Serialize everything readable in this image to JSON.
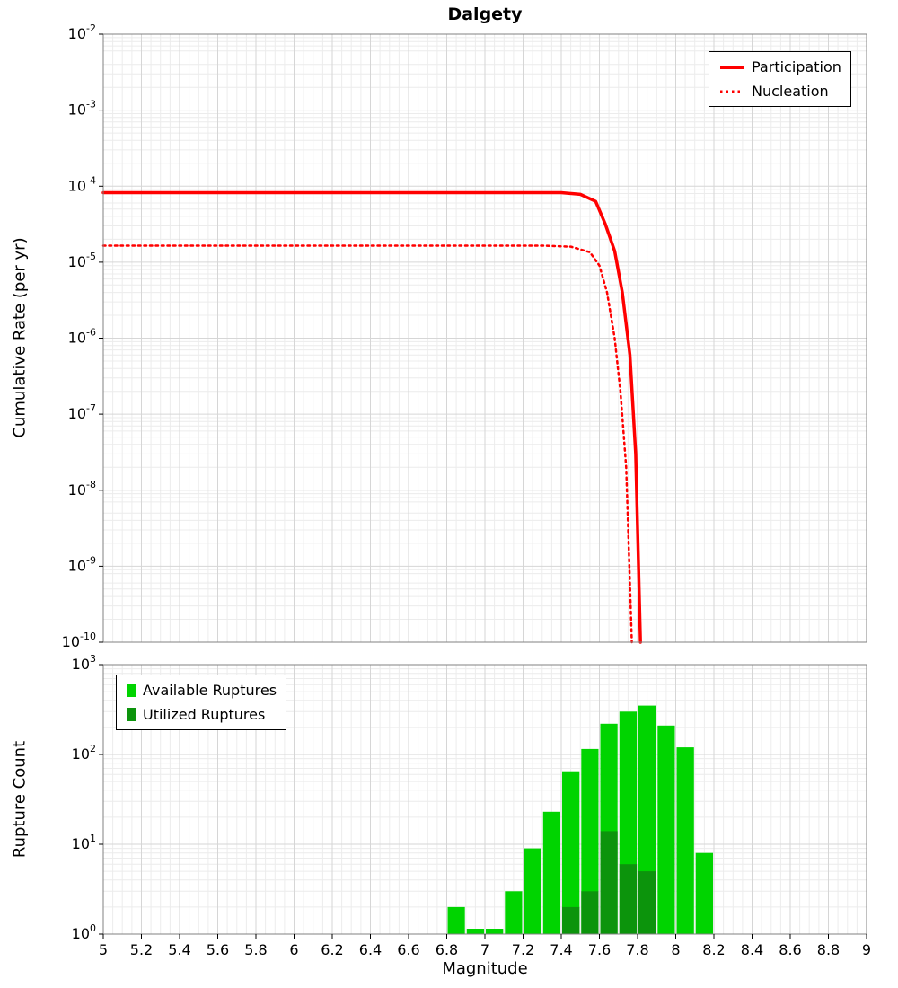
{
  "chart_data": [
    {
      "type": "line",
      "panel": "top",
      "title": "Dalgety",
      "ylabel": "Cumulative Rate (per yr)",
      "xlim": [
        5,
        9
      ],
      "ylim_log10": [
        -10,
        -2
      ],
      "y_tick_exponents": [
        -2,
        -3,
        -4,
        -5,
        -6,
        -7,
        -8,
        -9,
        -10
      ],
      "grid": true,
      "legend_position": "top-right",
      "series": [
        {
          "name": "Participation",
          "style": "solid",
          "color": "#ff0000",
          "points": [
            [
              5.0,
              8.2e-05
            ],
            [
              6.0,
              8.2e-05
            ],
            [
              7.0,
              8.2e-05
            ],
            [
              7.4,
              8.2e-05
            ],
            [
              7.5,
              7.8e-05
            ],
            [
              7.58,
              6.3e-05
            ],
            [
              7.63,
              3.2e-05
            ],
            [
              7.68,
              1.4e-05
            ],
            [
              7.72,
              4e-06
            ],
            [
              7.76,
              6e-07
            ],
            [
              7.79,
              3e-08
            ],
            [
              7.815,
              1e-10
            ]
          ]
        },
        {
          "name": "Nucleation",
          "style": "dotted",
          "color": "#ff0000",
          "points": [
            [
              5.0,
              1.65e-05
            ],
            [
              6.0,
              1.65e-05
            ],
            [
              7.0,
              1.65e-05
            ],
            [
              7.3,
              1.65e-05
            ],
            [
              7.45,
              1.6e-05
            ],
            [
              7.55,
              1.35e-05
            ],
            [
              7.6,
              9e-06
            ],
            [
              7.64,
              4e-06
            ],
            [
              7.68,
              1e-06
            ],
            [
              7.71,
              2e-07
            ],
            [
              7.74,
              2e-08
            ],
            [
              7.77,
              1e-10
            ]
          ]
        }
      ]
    },
    {
      "type": "bar",
      "panel": "bottom",
      "xlabel": "Magnitude",
      "ylabel": "Rupture Count",
      "xlim": [
        5,
        9
      ],
      "ylim_log10": [
        0,
        3
      ],
      "y_tick_exponents": [
        0,
        1,
        2,
        3
      ],
      "bin_width": 0.1,
      "grid": true,
      "legend_position": "top-left",
      "x_ticks": [
        [
          5,
          "5"
        ],
        [
          5.2,
          "5.2"
        ],
        [
          5.4,
          "5.4"
        ],
        [
          5.6,
          "5.6"
        ],
        [
          5.8,
          "5.8"
        ],
        [
          6,
          "6"
        ],
        [
          6.2,
          "6.2"
        ],
        [
          6.4,
          "6.4"
        ],
        [
          6.6,
          "6.6"
        ],
        [
          6.8,
          "6.8"
        ],
        [
          7,
          "7"
        ],
        [
          7.2,
          "7.2"
        ],
        [
          7.4,
          "7.4"
        ],
        [
          7.6,
          "7.6"
        ],
        [
          7.8,
          "7.8"
        ],
        [
          8,
          "8"
        ],
        [
          8.2,
          "8.2"
        ],
        [
          8.4,
          "8.4"
        ],
        [
          8.6,
          "8.6"
        ],
        [
          8.8,
          "8.8"
        ],
        [
          9,
          "9"
        ]
      ],
      "series": [
        {
          "name": "Available Ruptures",
          "color": "#00d400",
          "bins": [
            [
              6.85,
              2
            ],
            [
              6.95,
              1
            ],
            [
              7.05,
              1
            ],
            [
              7.15,
              3
            ],
            [
              7.25,
              9
            ],
            [
              7.35,
              23
            ],
            [
              7.45,
              65
            ],
            [
              7.55,
              115
            ],
            [
              7.65,
              220
            ],
            [
              7.75,
              300
            ],
            [
              7.85,
              350
            ],
            [
              7.95,
              210
            ],
            [
              8.05,
              120
            ],
            [
              8.15,
              8
            ]
          ]
        },
        {
          "name": "Utilized Ruptures",
          "color": "#0c940c",
          "bins": [
            [
              7.45,
              2
            ],
            [
              7.55,
              3
            ],
            [
              7.65,
              14
            ],
            [
              7.75,
              6
            ],
            [
              7.85,
              5
            ]
          ]
        }
      ]
    }
  ],
  "style": {
    "grid_major": "#d6d6d6",
    "grid_minor": "#ececec",
    "axis_border": "#808080",
    "background": "#ffffff",
    "text": "#000000"
  }
}
